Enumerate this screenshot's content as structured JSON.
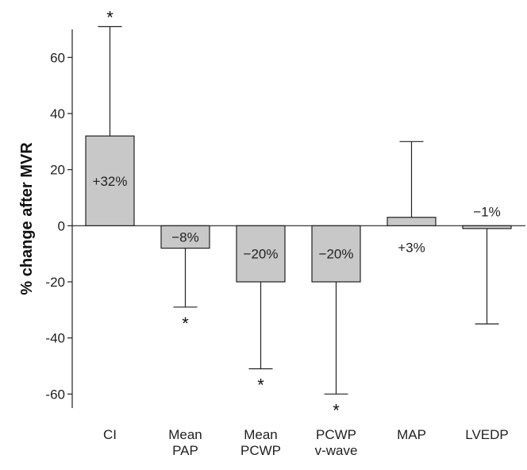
{
  "chart_data": {
    "type": "bar",
    "title": "",
    "xlabel": "",
    "ylabel": "% change after MVR",
    "ylim": [
      -65,
      70
    ],
    "yticks": [
      60,
      40,
      20,
      0,
      -20,
      -40,
      -60
    ],
    "grid": false,
    "colors": {
      "bar_fill": "#c8c8c8",
      "bar_stroke": "#222222",
      "axis": "#222222"
    },
    "categories": [
      "CI",
      "Mean PAP",
      "Mean PCWP",
      "PCWP v-wave",
      "MAP",
      "LVEDP"
    ],
    "category_lines": [
      [
        "CI"
      ],
      [
        "Mean",
        "PAP"
      ],
      [
        "Mean",
        "PCWP"
      ],
      [
        "PCWP",
        "v-wave"
      ],
      [
        "MAP"
      ],
      [
        "LVEDP"
      ]
    ],
    "values": [
      32,
      -8,
      -20,
      -20,
      3,
      -1
    ],
    "error_ends": [
      71,
      -29,
      -51,
      -60,
      30,
      -35
    ],
    "data_labels": [
      "+32%",
      "−8%",
      "−20%",
      "−20%",
      "+3%",
      "−1%"
    ],
    "significance": [
      "*",
      "*",
      "*",
      "*",
      "",
      ""
    ]
  }
}
